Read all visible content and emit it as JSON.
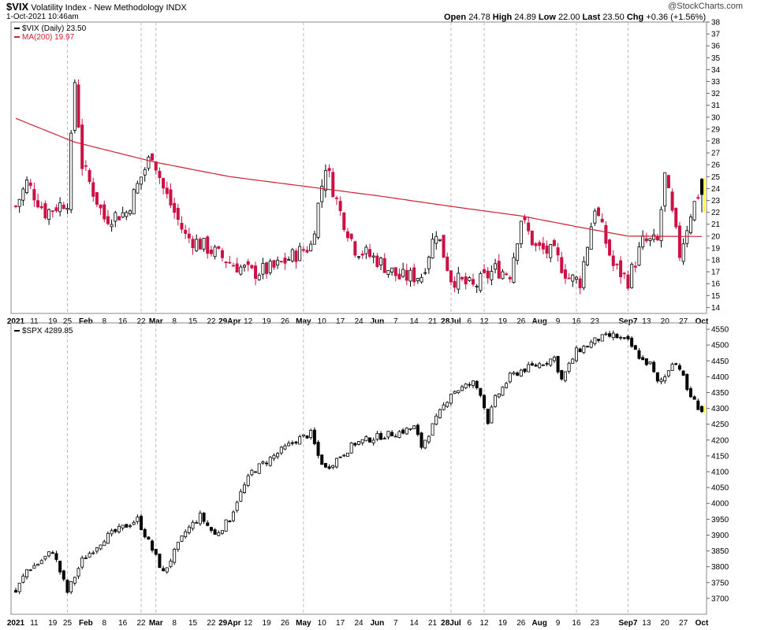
{
  "header": {
    "symbol": "$VIX",
    "name": "Volatility Index - New Methodology",
    "exchange": "INDX",
    "datetime": "1-Oct-2021 10:46am",
    "logo": "@StockCharts.com",
    "open_label": "Open",
    "open": "24.78",
    "high_label": "High",
    "high": "24.89",
    "low_label": "Low",
    "low": "22.00",
    "last_label": "Last",
    "last": "23.50",
    "chg_label": "Chg",
    "chg": "+0.36 (+1.56%)"
  },
  "colors": {
    "down": "#cc1144",
    "up": "#ffffff",
    "ma": "#cc2233",
    "grid": "#cccccc",
    "latest": "#ffee00"
  },
  "chart_data": [
    {
      "type": "candlestick",
      "legend_series": "$VIX (Daily) 23.50",
      "legend_ma": "MA(200) 19.97",
      "ylim": [
        13.5,
        38
      ],
      "y_ticks": [
        14,
        15,
        16,
        17,
        18,
        19,
        20,
        21,
        22,
        23,
        24,
        25,
        26,
        27,
        28,
        29,
        30,
        31,
        32,
        33,
        34,
        35,
        36,
        37,
        38
      ],
      "x_labels": [
        "2021",
        "11",
        "19",
        "25",
        "Feb",
        "8",
        "16",
        "22",
        "Mar",
        "8",
        "15",
        "22",
        "29Apr",
        "12",
        "19",
        "26",
        "May",
        "10",
        "17",
        "24",
        "Jun",
        "7",
        "14",
        "21",
        "28Jul",
        "6",
        "12",
        "19",
        "26",
        "Aug",
        "9",
        "16",
        "23",
        "Sep7",
        "13",
        "20",
        "27",
        "Oct"
      ],
      "x_label_index": [
        0,
        5,
        10,
        14,
        19,
        24,
        29,
        34,
        38,
        43,
        48,
        53,
        58,
        63,
        68,
        73,
        78,
        83,
        88,
        93,
        98,
        103,
        108,
        113,
        118,
        123,
        127,
        132,
        137,
        142,
        147,
        152,
        157,
        166,
        171,
        176,
        181,
        186
      ],
      "vertical_lines_index": [
        14,
        34,
        38,
        78,
        118,
        127,
        152,
        166
      ],
      "close_anchors": [
        [
          0,
          22.5
        ],
        [
          3,
          24.5
        ],
        [
          8,
          22
        ],
        [
          14,
          23
        ],
        [
          16,
          33
        ],
        [
          18,
          26
        ],
        [
          24,
          21.5
        ],
        [
          30,
          22
        ],
        [
          34,
          25
        ],
        [
          37,
          27
        ],
        [
          40,
          24
        ],
        [
          46,
          20
        ],
        [
          52,
          19
        ],
        [
          58,
          17.8
        ],
        [
          64,
          16.9
        ],
        [
          70,
          17.3
        ],
        [
          76,
          18.5
        ],
        [
          80,
          19.2
        ],
        [
          84,
          26
        ],
        [
          88,
          22
        ],
        [
          92,
          19
        ],
        [
          98,
          18
        ],
        [
          104,
          16.5
        ],
        [
          110,
          16.7
        ],
        [
          114,
          20.5
        ],
        [
          118,
          16.5
        ],
        [
          124,
          15.7
        ],
        [
          130,
          17.2
        ],
        [
          134,
          16.9
        ],
        [
          137,
          21.5
        ],
        [
          141,
          19
        ],
        [
          146,
          18.5
        ],
        [
          150,
          16.5
        ],
        [
          153,
          16.2
        ],
        [
          157,
          22.5
        ],
        [
          162,
          17.5
        ],
        [
          166,
          16.3
        ],
        [
          170,
          19.5
        ],
        [
          174,
          19.5
        ],
        [
          176,
          25
        ],
        [
          180,
          18.5
        ],
        [
          183,
          22
        ],
        [
          185,
          23.5
        ]
      ],
      "ma_anchors": [
        [
          0,
          29.9
        ],
        [
          16,
          27.9
        ],
        [
          38,
          26.2
        ],
        [
          58,
          25
        ],
        [
          78,
          24.2
        ],
        [
          98,
          23.4
        ],
        [
          118,
          22.5
        ],
        [
          137,
          21.7
        ],
        [
          152,
          20.8
        ],
        [
          166,
          20
        ],
        [
          186,
          19.97
        ]
      ],
      "last_candle": {
        "open": 24.78,
        "high": 24.89,
        "low": 22.0,
        "close": 23.5
      }
    },
    {
      "type": "candlestick",
      "legend_series": "$SPX 4289.85",
      "ylim": [
        3650,
        4570
      ],
      "y_ticks": [
        3700,
        3750,
        3800,
        3850,
        3900,
        3950,
        4000,
        4050,
        4100,
        4150,
        4200,
        4250,
        4300,
        4350,
        4400,
        4450,
        4500,
        4550
      ],
      "x_labels": [
        "2021",
        "11",
        "19",
        "25",
        "Feb",
        "8",
        "16",
        "22",
        "Mar",
        "8",
        "15",
        "22",
        "29Apr",
        "12",
        "19",
        "26",
        "May",
        "10",
        "17",
        "24",
        "Jun",
        "7",
        "14",
        "21",
        "28Jul",
        "6",
        "12",
        "19",
        "26",
        "Aug",
        "9",
        "16",
        "23",
        "Sep7",
        "13",
        "20",
        "27",
        "Oct"
      ],
      "x_label_index": [
        0,
        5,
        10,
        14,
        19,
        24,
        29,
        34,
        38,
        43,
        48,
        53,
        58,
        63,
        68,
        73,
        78,
        83,
        88,
        93,
        98,
        103,
        108,
        113,
        118,
        123,
        127,
        132,
        137,
        142,
        147,
        152,
        157,
        166,
        171,
        176,
        181,
        186
      ],
      "vertical_lines_index": [
        14,
        34,
        38,
        78,
        118,
        127,
        152,
        166
      ],
      "close_anchors": [
        [
          0,
          3720
        ],
        [
          3,
          3790
        ],
        [
          6,
          3810
        ],
        [
          10,
          3850
        ],
        [
          14,
          3720
        ],
        [
          18,
          3820
        ],
        [
          24,
          3890
        ],
        [
          30,
          3930
        ],
        [
          33,
          3950
        ],
        [
          38,
          3830
        ],
        [
          40,
          3780
        ],
        [
          46,
          3910
        ],
        [
          50,
          3960
        ],
        [
          54,
          3900
        ],
        [
          58,
          3950
        ],
        [
          60,
          4010
        ],
        [
          64,
          4100
        ],
        [
          70,
          4150
        ],
        [
          76,
          4200
        ],
        [
          80,
          4220
        ],
        [
          82,
          4150
        ],
        [
          84,
          4110
        ],
        [
          88,
          4150
        ],
        [
          92,
          4190
        ],
        [
          98,
          4210
        ],
        [
          104,
          4225
        ],
        [
          108,
          4240
        ],
        [
          110,
          4180
        ],
        [
          118,
          4350
        ],
        [
          124,
          4380
        ],
        [
          126,
          4350
        ],
        [
          128,
          4260
        ],
        [
          130,
          4330
        ],
        [
          134,
          4400
        ],
        [
          137,
          4420
        ],
        [
          142,
          4440
        ],
        [
          146,
          4460
        ],
        [
          148,
          4390
        ],
        [
          152,
          4480
        ],
        [
          158,
          4520
        ],
        [
          162,
          4530
        ],
        [
          166,
          4510
        ],
        [
          170,
          4450
        ],
        [
          172,
          4440
        ],
        [
          174,
          4380
        ],
        [
          176,
          4400
        ],
        [
          178,
          4450
        ],
        [
          180,
          4430
        ],
        [
          182,
          4360
        ],
        [
          184,
          4320
        ],
        [
          186,
          4290
        ]
      ],
      "last_candle": {
        "open": 4306,
        "high": 4310,
        "low": 4285,
        "close": 4290
      }
    }
  ]
}
